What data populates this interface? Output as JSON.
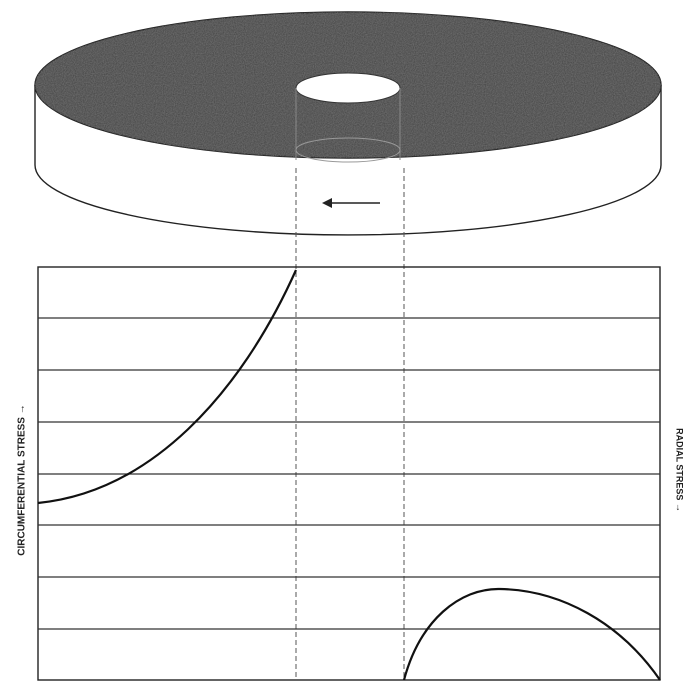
{
  "labels": {
    "left_axis": "CIRCUMFERENTIAL STRESS →",
    "right_axis": "RADIAL STRESS →"
  }
}
